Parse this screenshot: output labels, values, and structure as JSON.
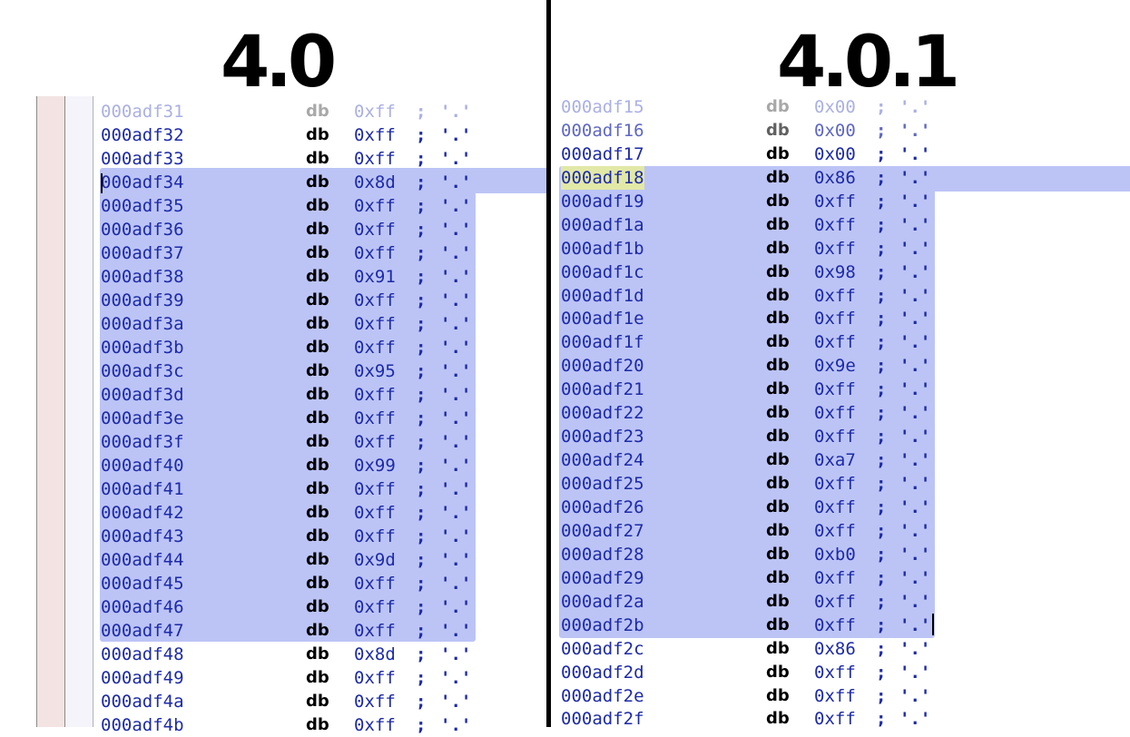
{
  "titles": {
    "left": "4.0",
    "right": "4.0.1"
  },
  "left_rows": [
    {
      "addr": "000adf31",
      "op": "db",
      "val": "0xff",
      "semi": ";",
      "chr": "'.'"
    },
    {
      "addr": "000adf32",
      "op": "db",
      "val": "0xff",
      "semi": ";",
      "chr": "'.'"
    },
    {
      "addr": "000adf33",
      "op": "db",
      "val": "0xff",
      "semi": ";",
      "chr": "'.'"
    },
    {
      "addr": "000adf34",
      "op": "db",
      "val": "0x8d",
      "semi": ";",
      "chr": "'.'"
    },
    {
      "addr": "000adf35",
      "op": "db",
      "val": "0xff",
      "semi": ";",
      "chr": "'.'"
    },
    {
      "addr": "000adf36",
      "op": "db",
      "val": "0xff",
      "semi": ";",
      "chr": "'.'"
    },
    {
      "addr": "000adf37",
      "op": "db",
      "val": "0xff",
      "semi": ";",
      "chr": "'.'"
    },
    {
      "addr": "000adf38",
      "op": "db",
      "val": "0x91",
      "semi": ";",
      "chr": "'.'"
    },
    {
      "addr": "000adf39",
      "op": "db",
      "val": "0xff",
      "semi": ";",
      "chr": "'.'"
    },
    {
      "addr": "000adf3a",
      "op": "db",
      "val": "0xff",
      "semi": ";",
      "chr": "'.'"
    },
    {
      "addr": "000adf3b",
      "op": "db",
      "val": "0xff",
      "semi": ";",
      "chr": "'.'"
    },
    {
      "addr": "000adf3c",
      "op": "db",
      "val": "0x95",
      "semi": ";",
      "chr": "'.'"
    },
    {
      "addr": "000adf3d",
      "op": "db",
      "val": "0xff",
      "semi": ";",
      "chr": "'.'"
    },
    {
      "addr": "000adf3e",
      "op": "db",
      "val": "0xff",
      "semi": ";",
      "chr": "'.'"
    },
    {
      "addr": "000adf3f",
      "op": "db",
      "val": "0xff",
      "semi": ";",
      "chr": "'.'"
    },
    {
      "addr": "000adf40",
      "op": "db",
      "val": "0x99",
      "semi": ";",
      "chr": "'.'"
    },
    {
      "addr": "000adf41",
      "op": "db",
      "val": "0xff",
      "semi": ";",
      "chr": "'.'"
    },
    {
      "addr": "000adf42",
      "op": "db",
      "val": "0xff",
      "semi": ";",
      "chr": "'.'"
    },
    {
      "addr": "000adf43",
      "op": "db",
      "val": "0xff",
      "semi": ";",
      "chr": "'.'"
    },
    {
      "addr": "000adf44",
      "op": "db",
      "val": "0x9d",
      "semi": ";",
      "chr": "'.'"
    },
    {
      "addr": "000adf45",
      "op": "db",
      "val": "0xff",
      "semi": ";",
      "chr": "'.'"
    },
    {
      "addr": "000adf46",
      "op": "db",
      "val": "0xff",
      "semi": ";",
      "chr": "'.'"
    },
    {
      "addr": "000adf47",
      "op": "db",
      "val": "0xff",
      "semi": ";",
      "chr": "'.'"
    },
    {
      "addr": "000adf48",
      "op": "db",
      "val": "0x8d",
      "semi": ";",
      "chr": "'.'"
    },
    {
      "addr": "000adf49",
      "op": "db",
      "val": "0xff",
      "semi": ";",
      "chr": "'.'"
    },
    {
      "addr": "000adf4a",
      "op": "db",
      "val": "0xff",
      "semi": ";",
      "chr": "'.'"
    },
    {
      "addr": "000adf4b",
      "op": "db",
      "val": "0xff",
      "semi": ";",
      "chr": "'.'"
    }
  ],
  "right_rows": [
    {
      "addr": "000adf15",
      "op": "db",
      "val": "0x00",
      "semi": ";",
      "chr": "'.'"
    },
    {
      "addr": "000adf16",
      "op": "db",
      "val": "0x00",
      "semi": ";",
      "chr": "'.'"
    },
    {
      "addr": "000adf17",
      "op": "db",
      "val": "0x00",
      "semi": ";",
      "chr": "'.'"
    },
    {
      "addr": "000adf18",
      "op": "db",
      "val": "0x86",
      "semi": ";",
      "chr": "'.'"
    },
    {
      "addr": "000adf19",
      "op": "db",
      "val": "0xff",
      "semi": ";",
      "chr": "'.'"
    },
    {
      "addr": "000adf1a",
      "op": "db",
      "val": "0xff",
      "semi": ";",
      "chr": "'.'"
    },
    {
      "addr": "000adf1b",
      "op": "db",
      "val": "0xff",
      "semi": ";",
      "chr": "'.'"
    },
    {
      "addr": "000adf1c",
      "op": "db",
      "val": "0x98",
      "semi": ";",
      "chr": "'.'"
    },
    {
      "addr": "000adf1d",
      "op": "db",
      "val": "0xff",
      "semi": ";",
      "chr": "'.'"
    },
    {
      "addr": "000adf1e",
      "op": "db",
      "val": "0xff",
      "semi": ";",
      "chr": "'.'"
    },
    {
      "addr": "000adf1f",
      "op": "db",
      "val": "0xff",
      "semi": ";",
      "chr": "'.'"
    },
    {
      "addr": "000adf20",
      "op": "db",
      "val": "0x9e",
      "semi": ";",
      "chr": "'.'"
    },
    {
      "addr": "000adf21",
      "op": "db",
      "val": "0xff",
      "semi": ";",
      "chr": "'.'"
    },
    {
      "addr": "000adf22",
      "op": "db",
      "val": "0xff",
      "semi": ";",
      "chr": "'.'"
    },
    {
      "addr": "000adf23",
      "op": "db",
      "val": "0xff",
      "semi": ";",
      "chr": "'.'"
    },
    {
      "addr": "000adf24",
      "op": "db",
      "val": "0xa7",
      "semi": ";",
      "chr": "'.'"
    },
    {
      "addr": "000adf25",
      "op": "db",
      "val": "0xff",
      "semi": ";",
      "chr": "'.'"
    },
    {
      "addr": "000adf26",
      "op": "db",
      "val": "0xff",
      "semi": ";",
      "chr": "'.'"
    },
    {
      "addr": "000adf27",
      "op": "db",
      "val": "0xff",
      "semi": ";",
      "chr": "'.'"
    },
    {
      "addr": "000adf28",
      "op": "db",
      "val": "0xb0",
      "semi": ";",
      "chr": "'.'"
    },
    {
      "addr": "000adf29",
      "op": "db",
      "val": "0xff",
      "semi": ";",
      "chr": "'.'"
    },
    {
      "addr": "000adf2a",
      "op": "db",
      "val": "0xff",
      "semi": ";",
      "chr": "'.'"
    },
    {
      "addr": "000adf2b",
      "op": "db",
      "val": "0xff",
      "semi": ";",
      "chr": "'.'"
    },
    {
      "addr": "000adf2c",
      "op": "db",
      "val": "0x86",
      "semi": ";",
      "chr": "'.'"
    },
    {
      "addr": "000adf2d",
      "op": "db",
      "val": "0xff",
      "semi": ";",
      "chr": "'.'"
    },
    {
      "addr": "000adf2e",
      "op": "db",
      "val": "0xff",
      "semi": ";",
      "chr": "'.'"
    },
    {
      "addr": "000adf2f",
      "op": "db",
      "val": "0xff",
      "semi": ";",
      "chr": "'.'"
    }
  ],
  "colors": {
    "selection": "#bcc4f6",
    "address_text": "#1c2aa8",
    "mnemonic_text": "#000000",
    "current_address_highlight": "#e2e8a6",
    "divider": "#000000"
  }
}
